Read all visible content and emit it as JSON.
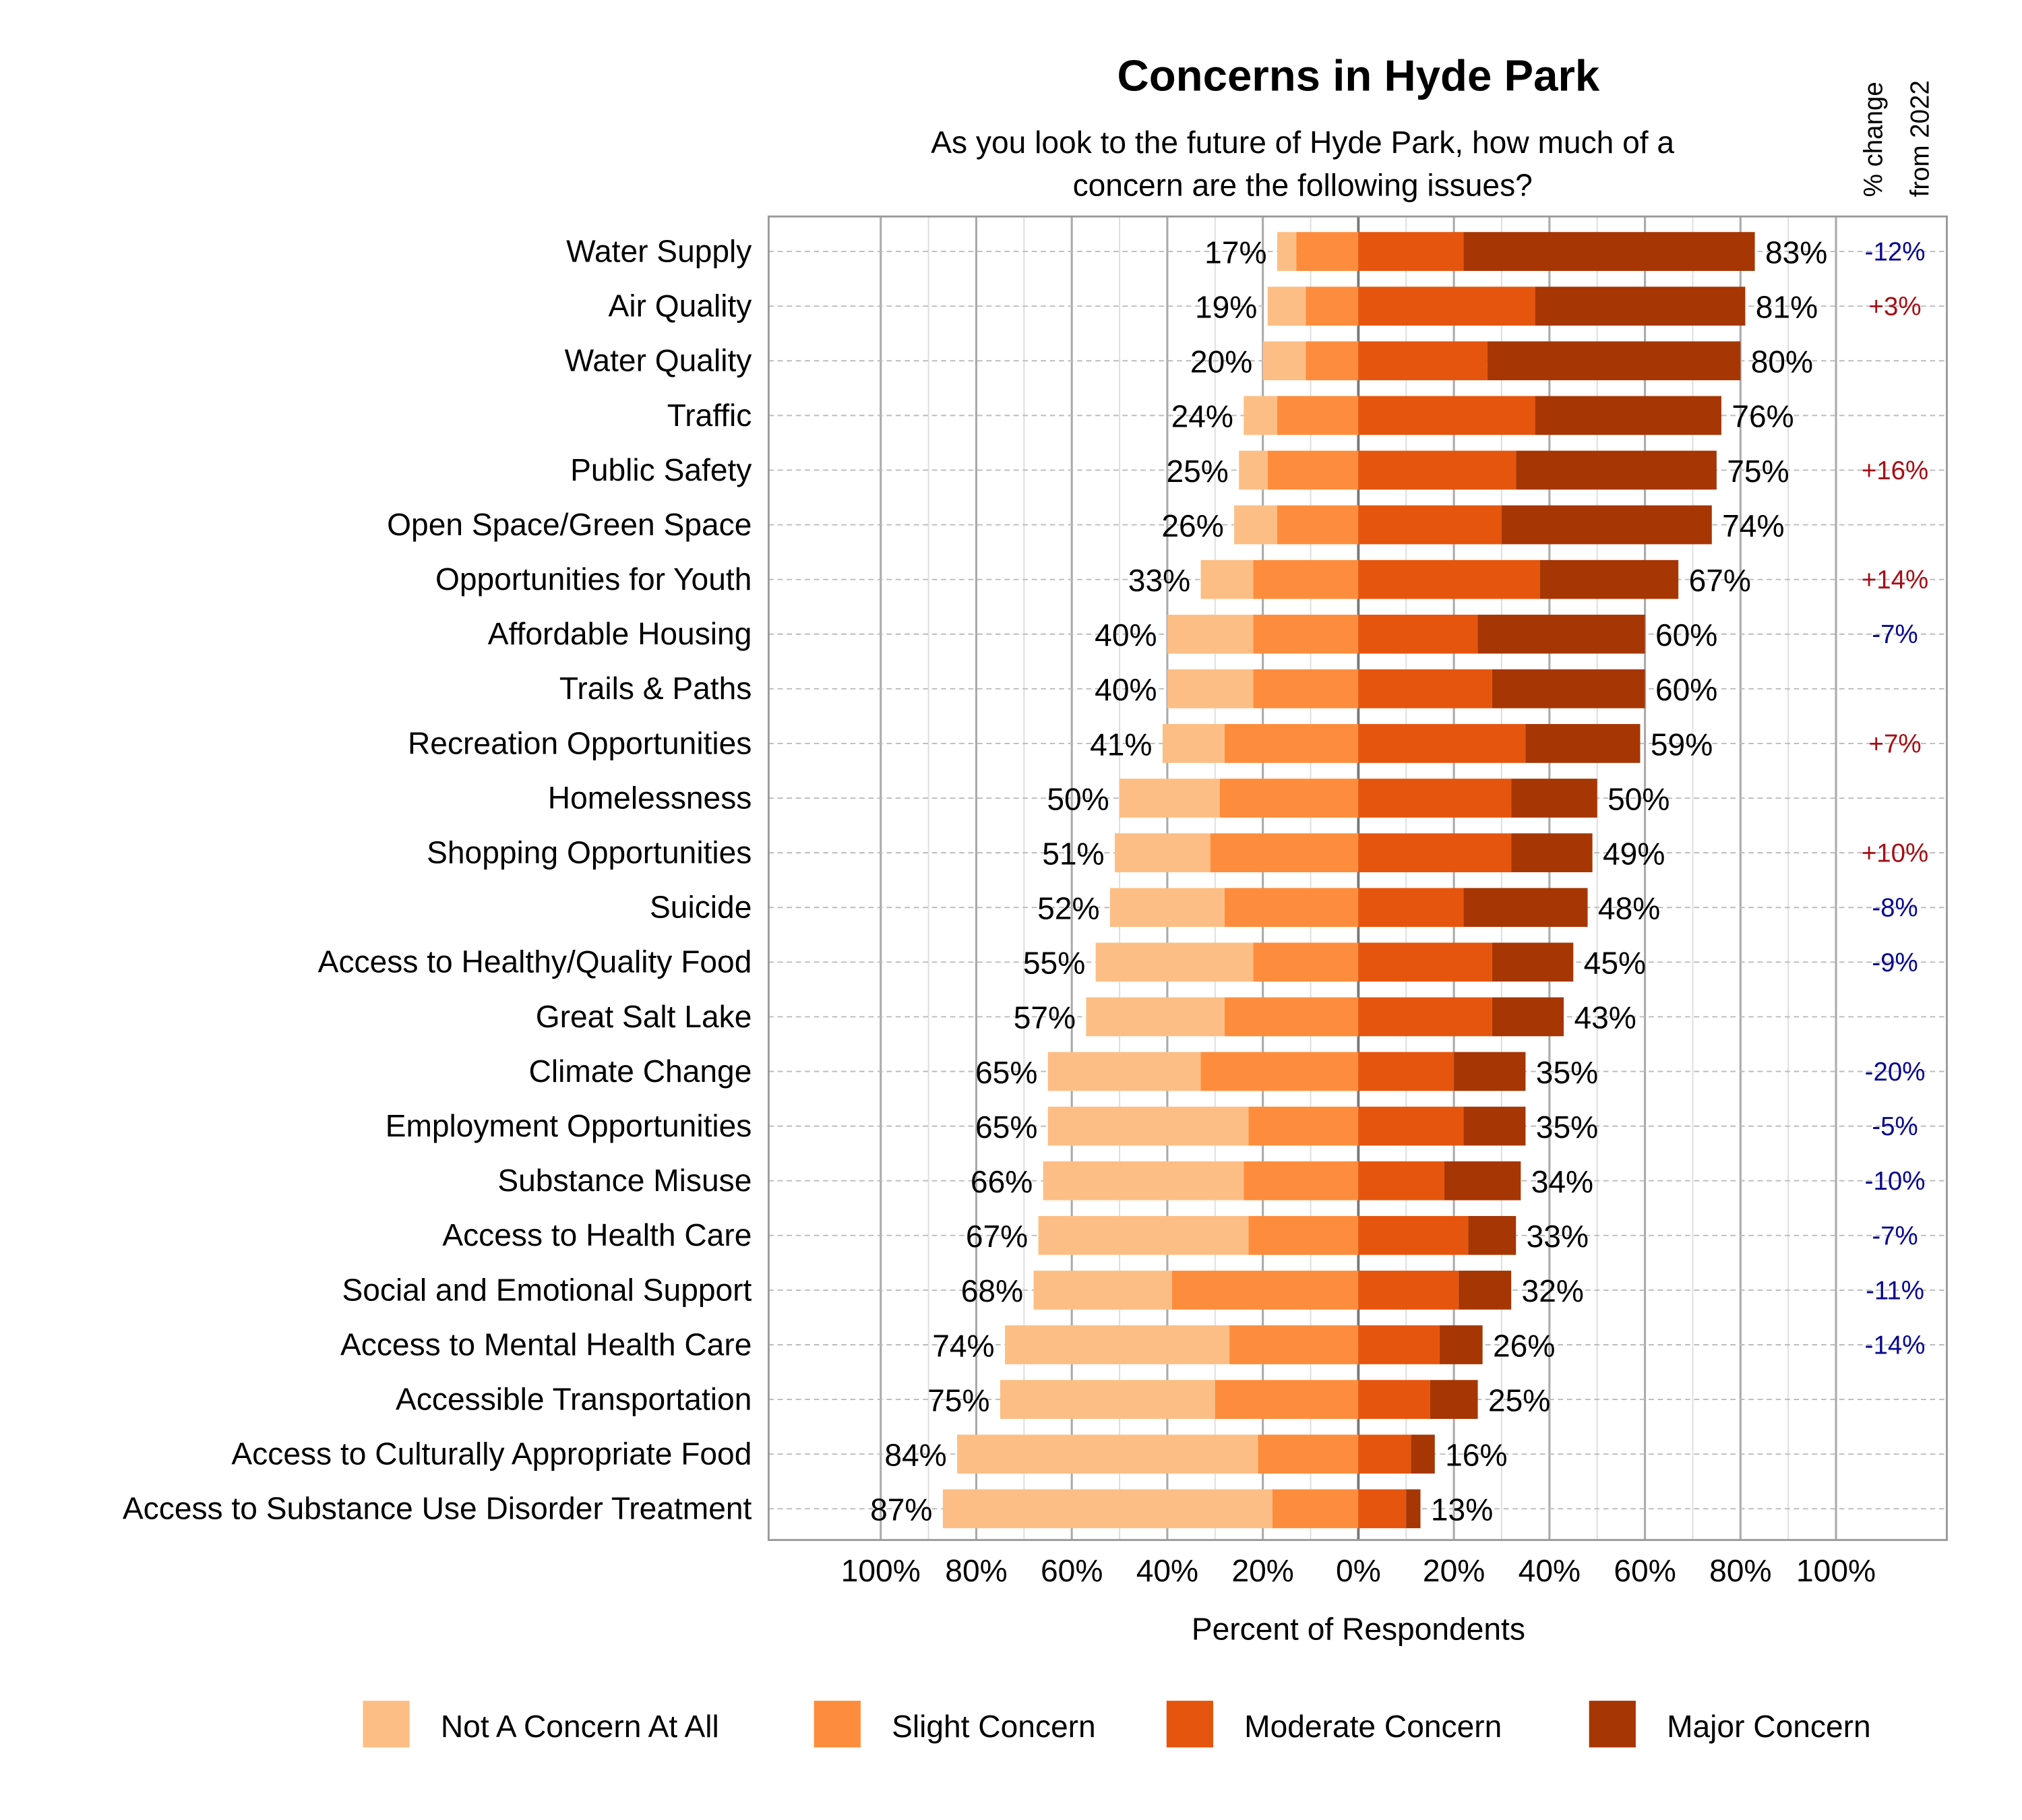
{
  "chart_data": {
    "type": "bar",
    "orientation": "horizontal",
    "stacking": "diverging",
    "title": "Concerns in Hyde Park",
    "subtitle": [
      "As you look to the future of Hyde Park, how much of a",
      "concern are the following issues?"
    ],
    "xlabel": "Percent of Respondents",
    "change_header": [
      "% change",
      "from 2022"
    ],
    "x_ticks": [
      "100%",
      "80%",
      "60%",
      "40%",
      "20%",
      "0%",
      "20%",
      "40%",
      "60%",
      "80%",
      "100%"
    ],
    "xlim": [
      -100,
      100
    ],
    "grid": true,
    "legend_position": "bottom",
    "colors": {
      "Not A Concern At All": "#FDBE85",
      "Slight Concern": "#FD8D3C",
      "Moderate Concern": "#E6550D",
      "Major Concern": "#A63603",
      "change_positive": "#A50F15",
      "change_negative": "#08088F"
    },
    "series_names": [
      "Not A Concern At All",
      "Slight Concern",
      "Moderate Concern",
      "Major Concern"
    ],
    "categories": [
      "Water Supply",
      "Air Quality",
      "Water Quality",
      "Traffic",
      "Public Safety",
      "Open Space/Green Space",
      "Opportunities for Youth",
      "Affordable Housing",
      "Trails & Paths",
      "Recreation Opportunities",
      "Homelessness",
      "Shopping Opportunities",
      "Suicide",
      "Access to Healthy/Quality Food",
      "Great Salt Lake",
      "Climate Change",
      "Employment Opportunities",
      "Substance Misuse",
      "Access to Health Care",
      "Social and Emotional Support",
      "Access to Mental Health Care",
      "Accessible Transportation",
      "Access to Culturally Appropriate Food",
      "Access to Substance Use Disorder Treatment"
    ],
    "series": [
      {
        "name": "Not A Concern At All",
        "values": [
          4,
          8,
          9,
          7,
          6,
          9,
          11,
          18,
          18,
          13,
          21,
          20,
          24,
          33,
          29,
          32,
          42,
          42,
          44,
          29,
          47,
          45,
          63,
          69
        ]
      },
      {
        "name": "Slight Concern",
        "values": [
          13,
          11,
          11,
          17,
          19,
          17,
          22,
          22,
          22,
          28,
          29,
          31,
          28,
          22,
          28,
          33,
          23,
          24,
          23,
          39,
          27,
          30,
          21,
          18
        ]
      },
      {
        "name": "Moderate Concern",
        "values": [
          22,
          37,
          27,
          37,
          33,
          30,
          38,
          25,
          28,
          35,
          32,
          32,
          22,
          28,
          28,
          20,
          22,
          18,
          23,
          21,
          17,
          15,
          11,
          10
        ]
      },
      {
        "name": "Major Concern",
        "values": [
          61,
          44,
          53,
          39,
          42,
          44,
          29,
          35,
          32,
          24,
          18,
          17,
          26,
          17,
          15,
          15,
          13,
          16,
          10,
          11,
          9,
          10,
          5,
          3
        ]
      }
    ],
    "left_labels": [
      "17%",
      "19%",
      "20%",
      "24%",
      "25%",
      "26%",
      "33%",
      "40%",
      "40%",
      "41%",
      "50%",
      "51%",
      "52%",
      "55%",
      "57%",
      "65%",
      "65%",
      "66%",
      "67%",
      "68%",
      "74%",
      "75%",
      "84%",
      "87%"
    ],
    "right_labels": [
      "83%",
      "81%",
      "80%",
      "76%",
      "75%",
      "74%",
      "67%",
      "60%",
      "60%",
      "59%",
      "50%",
      "49%",
      "48%",
      "45%",
      "43%",
      "35%",
      "35%",
      "34%",
      "33%",
      "32%",
      "26%",
      "25%",
      "16%",
      "13%"
    ],
    "change_from_2022": [
      "-12%",
      "+3%",
      "",
      "",
      "+16%",
      "",
      "+14%",
      "-7%",
      "",
      "+7%",
      "",
      "+10%",
      "-8%",
      "-9%",
      "",
      "-20%",
      "-5%",
      "-10%",
      "-7%",
      "-11%",
      "-14%",
      "",
      "",
      ""
    ]
  }
}
